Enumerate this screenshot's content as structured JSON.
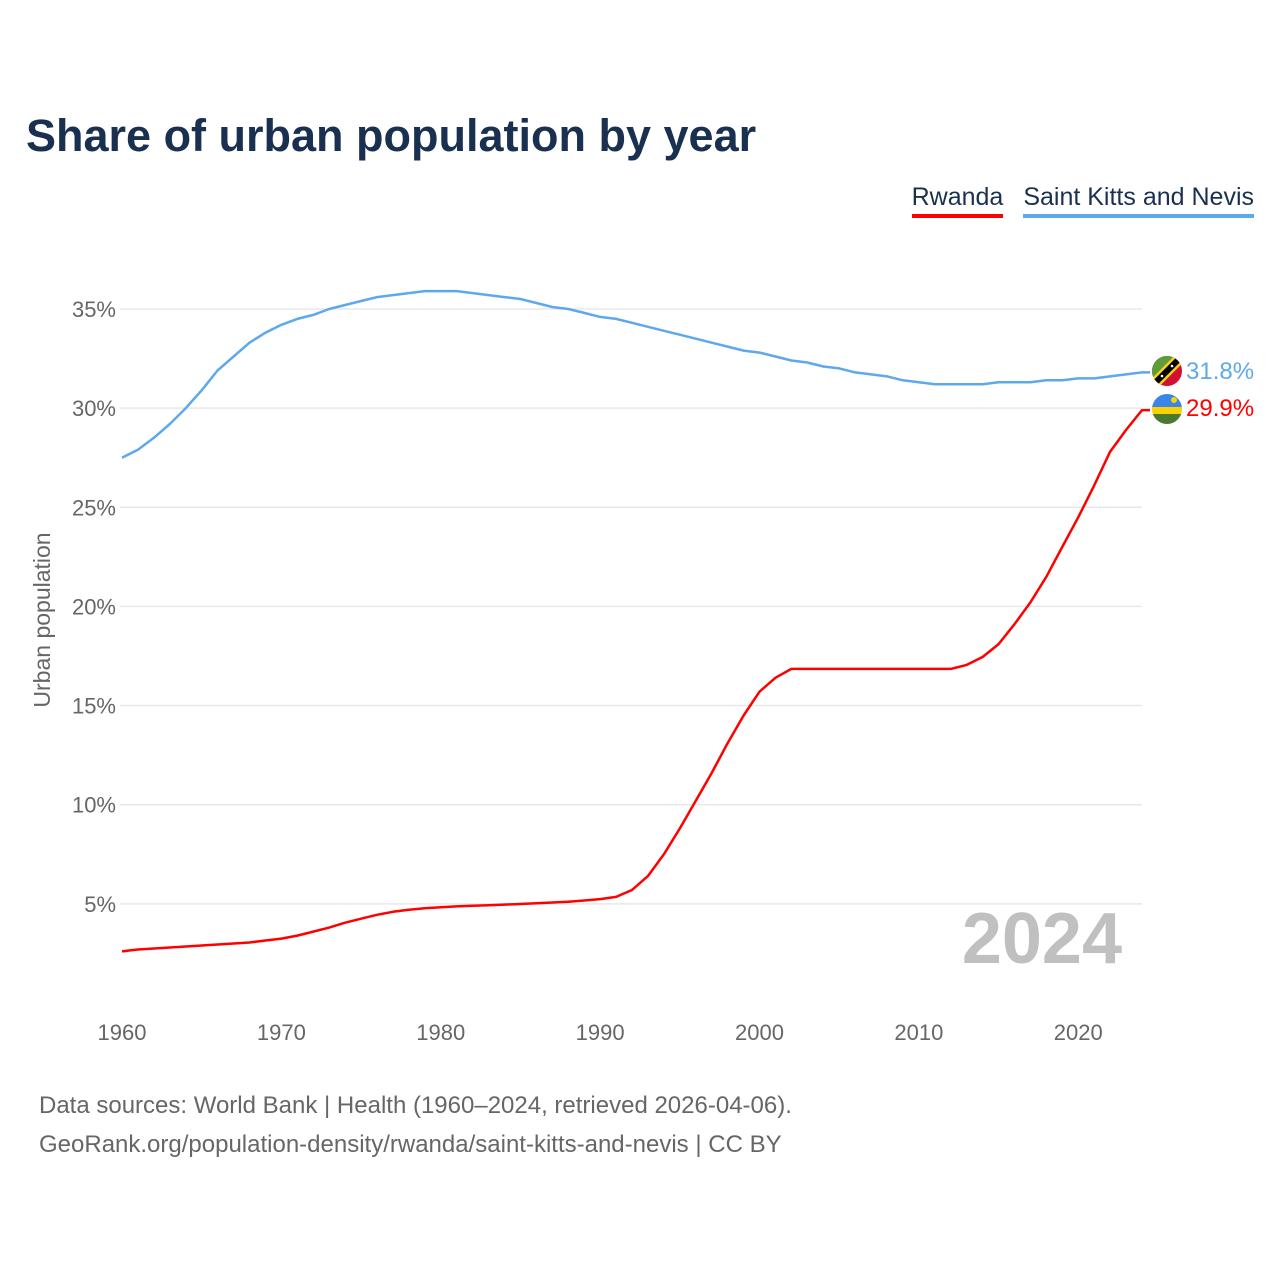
{
  "title": "Share of urban population by year",
  "legend": [
    {
      "name": "Rwanda",
      "color": "#ff0000"
    },
    {
      "name": "Saint Kitts and Nevis",
      "color": "#5ea8ec"
    }
  ],
  "current_year": "2024",
  "end_labels": {
    "rwanda": "29.9%",
    "skn": "31.8%"
  },
  "footer": {
    "line1": "Data sources: World Bank | Health (1960–2024, retrieved 2026-04-06).",
    "line2": "GeoRank.org/population-density/rwanda/saint-kitts-and-nevis | CC BY"
  },
  "chart_data": {
    "type": "line",
    "title": "Share of urban population by year",
    "xlabel": "",
    "ylabel": "Urban population",
    "xlim": [
      1960,
      2024
    ],
    "ylim": [
      0,
      37
    ],
    "x_ticks": [
      "1960",
      "1970",
      "1980",
      "1990",
      "2000",
      "2010",
      "2020"
    ],
    "y_ticks": [
      {
        "v": 5,
        "label": "5%"
      },
      {
        "v": 10,
        "label": "10%"
      },
      {
        "v": 15,
        "label": "15%"
      },
      {
        "v": 20,
        "label": "20%"
      },
      {
        "v": 25,
        "label": "25%"
      },
      {
        "v": 30,
        "label": "30%"
      },
      {
        "v": 35,
        "label": "35%"
      }
    ],
    "grid": true,
    "legend_position": "top-right",
    "x": [
      1960,
      1961,
      1962,
      1963,
      1964,
      1965,
      1966,
      1967,
      1968,
      1969,
      1970,
      1971,
      1972,
      1973,
      1974,
      1975,
      1976,
      1977,
      1978,
      1979,
      1980,
      1981,
      1982,
      1983,
      1984,
      1985,
      1986,
      1987,
      1988,
      1989,
      1990,
      1991,
      1992,
      1993,
      1994,
      1995,
      1996,
      1997,
      1998,
      1999,
      2000,
      2001,
      2002,
      2003,
      2004,
      2005,
      2006,
      2007,
      2008,
      2009,
      2010,
      2011,
      2012,
      2013,
      2014,
      2015,
      2016,
      2017,
      2018,
      2019,
      2020,
      2021,
      2022,
      2023,
      2024
    ],
    "series": [
      {
        "name": "Rwanda",
        "color": "#ff0000",
        "values": [
          2.6,
          2.7,
          2.75,
          2.8,
          2.85,
          2.9,
          2.95,
          3.0,
          3.05,
          3.15,
          3.25,
          3.4,
          3.6,
          3.8,
          4.05,
          4.25,
          4.45,
          4.6,
          4.7,
          4.78,
          4.83,
          4.87,
          4.9,
          4.93,
          4.96,
          4.99,
          5.03,
          5.07,
          5.11,
          5.17,
          5.24,
          5.35,
          5.7,
          6.4,
          7.5,
          8.8,
          10.2,
          11.6,
          13.1,
          14.5,
          15.7,
          16.4,
          16.85,
          16.85,
          16.85,
          16.85,
          16.85,
          16.85,
          16.85,
          16.85,
          16.85,
          16.85,
          16.85,
          17.05,
          17.45,
          18.1,
          19.1,
          20.2,
          21.5,
          23.0,
          24.5,
          26.1,
          27.8,
          28.9,
          29.9
        ]
      },
      {
        "name": "Saint Kitts and Nevis",
        "color": "#5ea8ec",
        "values": [
          27.5,
          27.9,
          28.5,
          29.2,
          30.0,
          30.9,
          31.9,
          32.6,
          33.3,
          33.8,
          34.2,
          34.5,
          34.7,
          35.0,
          35.2,
          35.4,
          35.6,
          35.7,
          35.8,
          35.9,
          35.9,
          35.9,
          35.8,
          35.7,
          35.6,
          35.5,
          35.3,
          35.1,
          35.0,
          34.8,
          34.6,
          34.5,
          34.3,
          34.1,
          33.9,
          33.7,
          33.5,
          33.3,
          33.1,
          32.9,
          32.8,
          32.6,
          32.4,
          32.3,
          32.1,
          32.0,
          31.8,
          31.7,
          31.6,
          31.4,
          31.3,
          31.2,
          31.2,
          31.2,
          31.2,
          31.3,
          31.3,
          31.3,
          31.4,
          31.4,
          31.5,
          31.5,
          31.6,
          31.7,
          31.8
        ]
      }
    ]
  }
}
